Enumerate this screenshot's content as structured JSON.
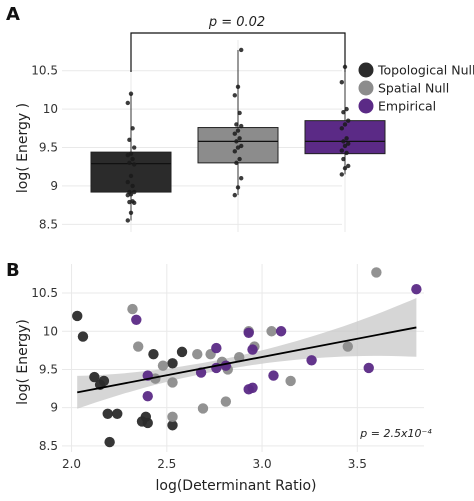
{
  "colors": {
    "topological_null": "#2b2b2b",
    "spatial_null": "#8c8c8c",
    "empirical": "#5b2a86",
    "grid": "#e9e9e9",
    "ci_band": "#c8c8c8",
    "fit_line": "#000000"
  },
  "legend": [
    "Topological Null",
    "Spatial Null",
    "Empirical"
  ],
  "chart_data": [
    {
      "type": "box",
      "panel_label": "A",
      "ylabel": "log( Energy )",
      "yticks": [
        "8.5",
        "9",
        "9.5",
        "10",
        "10.5"
      ],
      "ylim": [
        8.4,
        10.9
      ],
      "grid": true,
      "legend_position": "right",
      "annotation": "p = 0.02",
      "annotation_bracket": [
        "Topological Null",
        "Empirical"
      ],
      "groups": [
        {
          "name": "Topological Null",
          "q1": 8.92,
          "median": 9.29,
          "q3": 9.44,
          "whisker_low": 8.55,
          "whisker_high": 10.2,
          "points": [
            8.55,
            8.65,
            8.78,
            8.79,
            8.8,
            8.88,
            8.89,
            8.92,
            8.92,
            9.0,
            9.05,
            9.13,
            9.28,
            9.3,
            9.35,
            9.4,
            9.42,
            9.5,
            9.6,
            9.75,
            10.08,
            10.2
          ]
        },
        {
          "name": "Spatial Null",
          "q1": 9.3,
          "median": 9.58,
          "q3": 9.76,
          "whisker_low": 8.88,
          "whisker_high": 10.77,
          "points": [
            8.88,
            8.98,
            9.1,
            9.3,
            9.35,
            9.45,
            9.5,
            9.52,
            9.58,
            9.62,
            9.68,
            9.72,
            9.78,
            9.8,
            9.95,
            10.18,
            10.29,
            10.77
          ]
        },
        {
          "name": "Empirical",
          "q1": 9.42,
          "median": 9.58,
          "q3": 9.85,
          "whisker_low": 9.15,
          "whisker_high": 10.55,
          "points": [
            9.15,
            9.23,
            9.26,
            9.35,
            9.43,
            9.46,
            9.52,
            9.55,
            9.58,
            9.62,
            9.75,
            9.8,
            9.85,
            9.96,
            10.0,
            10.35,
            10.55
          ]
        }
      ]
    },
    {
      "type": "scatter",
      "panel_label": "B",
      "xlabel": "log(Determinant Ratio)",
      "ylabel": "log( Energy)",
      "xticks": [
        "2.0",
        "2.5",
        "3.0",
        "3.5"
      ],
      "yticks": [
        "8.5",
        "9",
        "9.5",
        "10",
        "10.5"
      ],
      "xlim": [
        1.95,
        3.85
      ],
      "ylim": [
        8.42,
        10.88
      ],
      "grid": true,
      "annotation": "p = 2.5x10⁻⁴",
      "fit": {
        "x": [
          2.03,
          3.81
        ],
        "y": [
          9.2,
          10.05
        ]
      },
      "series": [
        {
          "name": "Topological Null",
          "points": [
            [
              2.03,
              10.2
            ],
            [
              2.06,
              9.93
            ],
            [
              2.12,
              9.4
            ],
            [
              2.15,
              9.3
            ],
            [
              2.17,
              9.35
            ],
            [
              2.19,
              8.92
            ],
            [
              2.2,
              8.55
            ],
            [
              2.24,
              8.92
            ],
            [
              2.37,
              8.82
            ],
            [
              2.39,
              8.88
            ],
            [
              2.4,
              8.8
            ],
            [
              2.43,
              9.7
            ],
            [
              2.53,
              9.58
            ],
            [
              2.53,
              8.77
            ],
            [
              2.58,
              9.73
            ]
          ]
        },
        {
          "name": "Spatial Null",
          "points": [
            [
              2.32,
              10.29
            ],
            [
              2.35,
              9.8
            ],
            [
              2.44,
              9.38
            ],
            [
              2.48,
              9.55
            ],
            [
              2.53,
              8.88
            ],
            [
              2.53,
              9.33
            ],
            [
              2.66,
              9.7
            ],
            [
              2.69,
              8.99
            ],
            [
              2.73,
              9.7
            ],
            [
              2.79,
              9.6
            ],
            [
              2.81,
              9.08
            ],
            [
              2.82,
              9.5
            ],
            [
              2.88,
              9.66
            ],
            [
              2.93,
              10.0
            ],
            [
              2.96,
              9.8
            ],
            [
              3.05,
              10.0
            ],
            [
              3.15,
              9.35
            ],
            [
              3.45,
              9.8
            ],
            [
              3.6,
              10.77
            ]
          ]
        },
        {
          "name": "Empirical",
          "points": [
            [
              2.34,
              10.15
            ],
            [
              2.4,
              9.42
            ],
            [
              2.4,
              9.15
            ],
            [
              2.68,
              9.46
            ],
            [
              2.76,
              9.52
            ],
            [
              2.76,
              9.78
            ],
            [
              2.81,
              9.55
            ],
            [
              2.93,
              9.98
            ],
            [
              2.93,
              9.24
            ],
            [
              2.95,
              9.76
            ],
            [
              2.95,
              9.26
            ],
            [
              3.06,
              9.42
            ],
            [
              3.1,
              10.0
            ],
            [
              3.26,
              9.62
            ],
            [
              3.56,
              9.52
            ],
            [
              3.81,
              10.55
            ]
          ]
        }
      ]
    }
  ]
}
